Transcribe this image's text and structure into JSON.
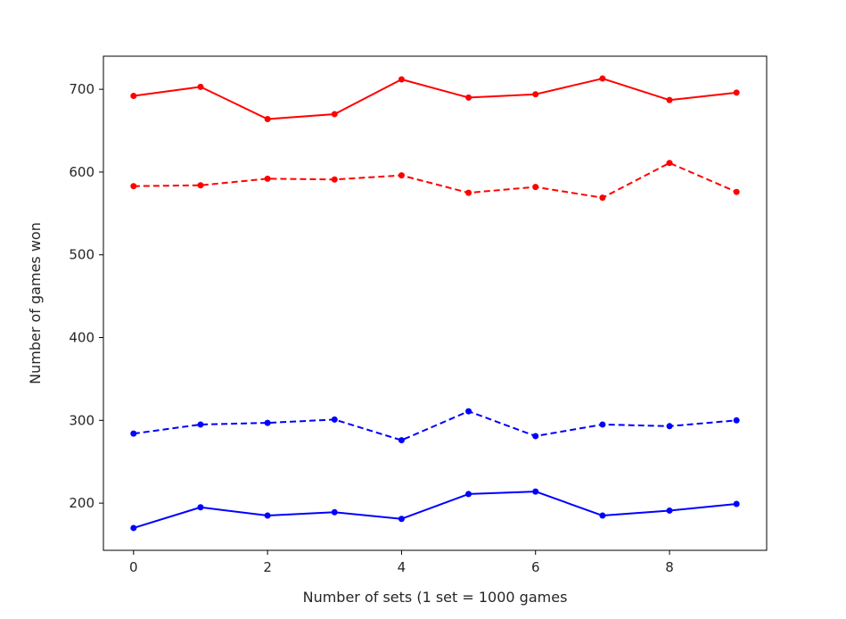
{
  "chart_data": {
    "type": "line",
    "title": "",
    "xlabel": "Number of sets (1 set = 1000 games",
    "ylabel": "Number of games won",
    "x": [
      0,
      1,
      2,
      3,
      4,
      5,
      6,
      7,
      8,
      9
    ],
    "xlim": [
      -0.45,
      9.45
    ],
    "ylim": [
      143,
      740
    ],
    "xticks": [
      0,
      2,
      4,
      6,
      8
    ],
    "yticks": [
      200,
      300,
      400,
      500,
      600,
      700
    ],
    "grid": false,
    "series": [
      {
        "values": [
          692,
          703,
          664,
          670,
          712,
          690,
          694,
          713,
          687,
          696
        ],
        "color": "#ff0000",
        "linestyle": "solid",
        "marker": "dot"
      },
      {
        "values": [
          583,
          584,
          592,
          591,
          596,
          575,
          582,
          569,
          611,
          576
        ],
        "color": "#ff0000",
        "linestyle": "dashed",
        "marker": "dot"
      },
      {
        "values": [
          284,
          295,
          297,
          301,
          276,
          311,
          281,
          295,
          293,
          300
        ],
        "color": "#0000ff",
        "linestyle": "dashed",
        "marker": "dot"
      },
      {
        "values": [
          170,
          195,
          185,
          189,
          181,
          211,
          214,
          185,
          191,
          199
        ],
        "color": "#0000ff",
        "linestyle": "solid",
        "marker": "dot"
      }
    ]
  }
}
